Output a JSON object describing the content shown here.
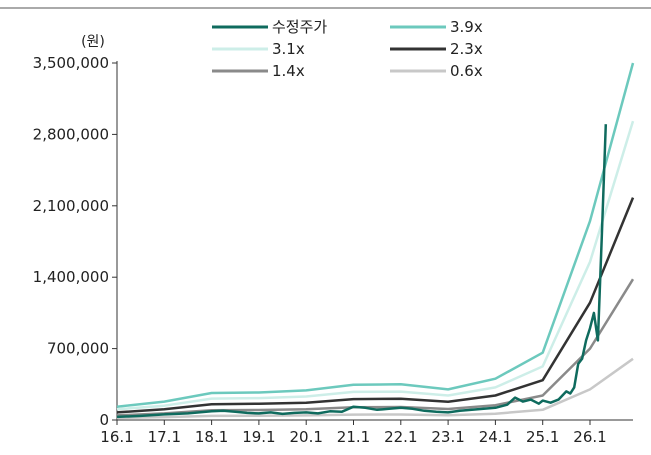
{
  "chart_data": {
    "type": "line",
    "unit_label": "(원)",
    "x_labels": [
      "16.1",
      "17.1",
      "18.1",
      "19.1",
      "20.1",
      "21.1",
      "22.1",
      "23.1",
      "24.1",
      "25.1",
      "26.1"
    ],
    "ylim": [
      0,
      3500000
    ],
    "y_ticks": [
      0,
      700000,
      1400000,
      2100000,
      2800000,
      3500000
    ],
    "y_tick_labels": [
      "0",
      "700,000",
      "1,400,000",
      "2,100,000",
      "2,800,000",
      "3,500,000"
    ],
    "grid": false,
    "legend_position": "top",
    "band_x": [
      "16.1",
      "17.1",
      "18.1",
      "19.1",
      "20.1",
      "21.1",
      "22.1",
      "23.1",
      "24.1",
      "25.1",
      "26.1",
      "27.1"
    ],
    "series": [
      {
        "name": "3.9x",
        "color": "#6cc9bd",
        "width": 2.5,
        "values": [
          130000,
          180000,
          265000,
          270000,
          290000,
          345000,
          350000,
          300000,
          405000,
          660000,
          1950000,
          3500000
        ]
      },
      {
        "name": "3.1x",
        "color": "#cdeee8",
        "width": 2.5,
        "values": [
          105000,
          140000,
          210000,
          215000,
          230000,
          275000,
          278000,
          240000,
          320000,
          525000,
          1550000,
          2930000
        ]
      },
      {
        "name": "2.3x",
        "color": "#333333",
        "width": 2.5,
        "values": [
          75000,
          105000,
          155000,
          160000,
          170000,
          205000,
          208000,
          178000,
          240000,
          390000,
          1150000,
          2180000
        ]
      },
      {
        "name": "1.4x",
        "color": "#8a8a8a",
        "width": 2.5,
        "values": [
          45000,
          65000,
          95000,
          98000,
          105000,
          125000,
          127000,
          108000,
          145000,
          240000,
          700000,
          1380000
        ]
      },
      {
        "name": "0.6x",
        "color": "#c8c8c8",
        "width": 2.5,
        "values": [
          20000,
          28000,
          40000,
          42000,
          45000,
          53000,
          54000,
          46000,
          62000,
          100000,
          300000,
          600000
        ]
      }
    ],
    "price": {
      "name": "수정주가",
      "color": "#0f6b5e",
      "width": 2.5,
      "points": [
        [
          "2016-01-01",
          30000
        ],
        [
          "2016-07-01",
          40000
        ],
        [
          "2017-01-01",
          55000
        ],
        [
          "2017-07-01",
          65000
        ],
        [
          "2018-01-01",
          85000
        ],
        [
          "2018-04-01",
          90000
        ],
        [
          "2018-07-01",
          80000
        ],
        [
          "2018-10-01",
          70000
        ],
        [
          "2019-01-01",
          65000
        ],
        [
          "2019-04-01",
          75000
        ],
        [
          "2019-07-01",
          60000
        ],
        [
          "2019-10-01",
          70000
        ],
        [
          "2020-01-01",
          75000
        ],
        [
          "2020-04-01",
          65000
        ],
        [
          "2020-07-01",
          85000
        ],
        [
          "2020-10-01",
          80000
        ],
        [
          "2021-01-01",
          130000
        ],
        [
          "2021-04-01",
          120000
        ],
        [
          "2021-07-01",
          100000
        ],
        [
          "2021-10-01",
          110000
        ],
        [
          "2022-01-01",
          120000
        ],
        [
          "2022-04-01",
          110000
        ],
        [
          "2022-07-01",
          90000
        ],
        [
          "2022-10-01",
          80000
        ],
        [
          "2023-01-01",
          75000
        ],
        [
          "2023-04-01",
          90000
        ],
        [
          "2023-07-01",
          100000
        ],
        [
          "2023-10-01",
          110000
        ],
        [
          "2024-01-01",
          120000
        ],
        [
          "2024-04-01",
          150000
        ],
        [
          "2024-06-01",
          220000
        ],
        [
          "2024-08-01",
          180000
        ],
        [
          "2024-10-01",
          200000
        ],
        [
          "2024-12-01",
          160000
        ],
        [
          "2025-01-01",
          190000
        ],
        [
          "2025-03-01",
          170000
        ],
        [
          "2025-05-01",
          200000
        ],
        [
          "2025-07-01",
          280000
        ],
        [
          "2025-08-01",
          260000
        ],
        [
          "2025-09-01",
          320000
        ],
        [
          "2025-10-01",
          550000
        ],
        [
          "2025-11-01",
          600000
        ],
        [
          "2025-12-01",
          780000
        ],
        [
          "2026-01-01",
          900000
        ],
        [
          "2026-02-01",
          1050000
        ],
        [
          "2026-03-01",
          780000
        ],
        [
          "2026-04-01",
          1800000
        ],
        [
          "2026-05-01",
          2900000
        ]
      ]
    }
  }
}
